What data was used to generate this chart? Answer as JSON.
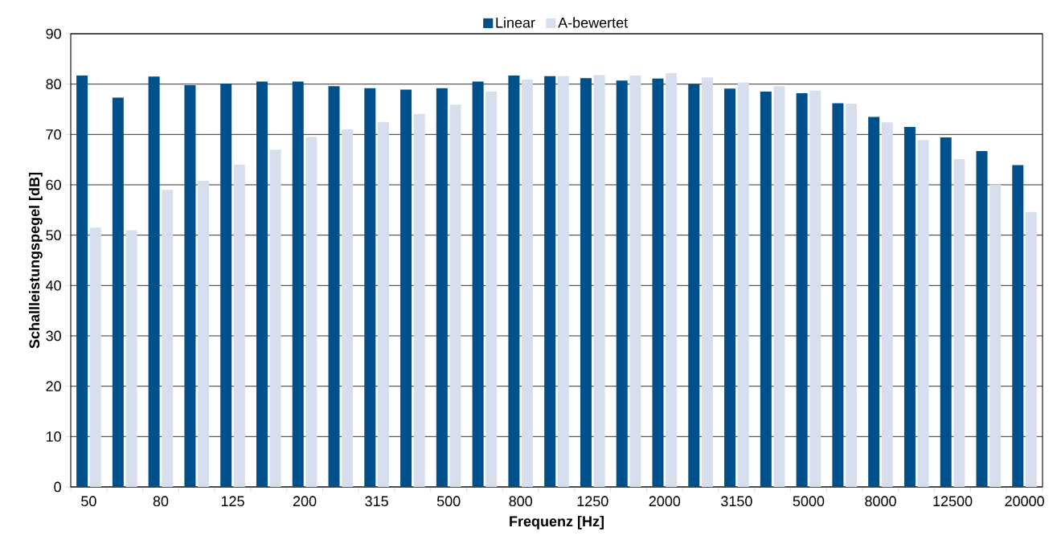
{
  "chart_data": {
    "type": "bar",
    "xlabel": "Frequenz  [Hz]",
    "ylabel": "Schallleistungspegel [dB]",
    "categories": [
      "50",
      null,
      "80",
      null,
      "125",
      null,
      "200",
      null,
      "315",
      null,
      "500",
      null,
      "800",
      null,
      "1250",
      null,
      "2000",
      null,
      "3150",
      null,
      "5000",
      null,
      "8000",
      null,
      "12500",
      null,
      "20000"
    ],
    "series": [
      {
        "name": "Linear",
        "color": "#00508c",
        "values": [
          81.7,
          77.3,
          81.5,
          79.8,
          80.1,
          80.5,
          80.5,
          79.6,
          79.2,
          78.9,
          79.2,
          80.5,
          81.7,
          81.6,
          81.2,
          80.7,
          81.1,
          80.0,
          79.1,
          78.5,
          78.2,
          76.2,
          73.5,
          71.5,
          69.4,
          66.7,
          63.9
        ]
      },
      {
        "name": "A-bewertet",
        "color": "#d7deed",
        "values": [
          51.5,
          51.0,
          59.0,
          60.8,
          64.0,
          67.0,
          69.5,
          71.0,
          72.5,
          74.1,
          75.9,
          78.5,
          80.9,
          81.6,
          81.8,
          81.7,
          82.2,
          81.3,
          80.3,
          79.6,
          78.7,
          76.1,
          72.4,
          68.9,
          65.1,
          60.1,
          54.6
        ]
      }
    ],
    "ylim": [
      0,
      90
    ],
    "yticks": [
      0,
      10,
      20,
      30,
      40,
      50,
      60,
      70,
      80,
      90
    ],
    "grid": "y",
    "legend": "top"
  }
}
